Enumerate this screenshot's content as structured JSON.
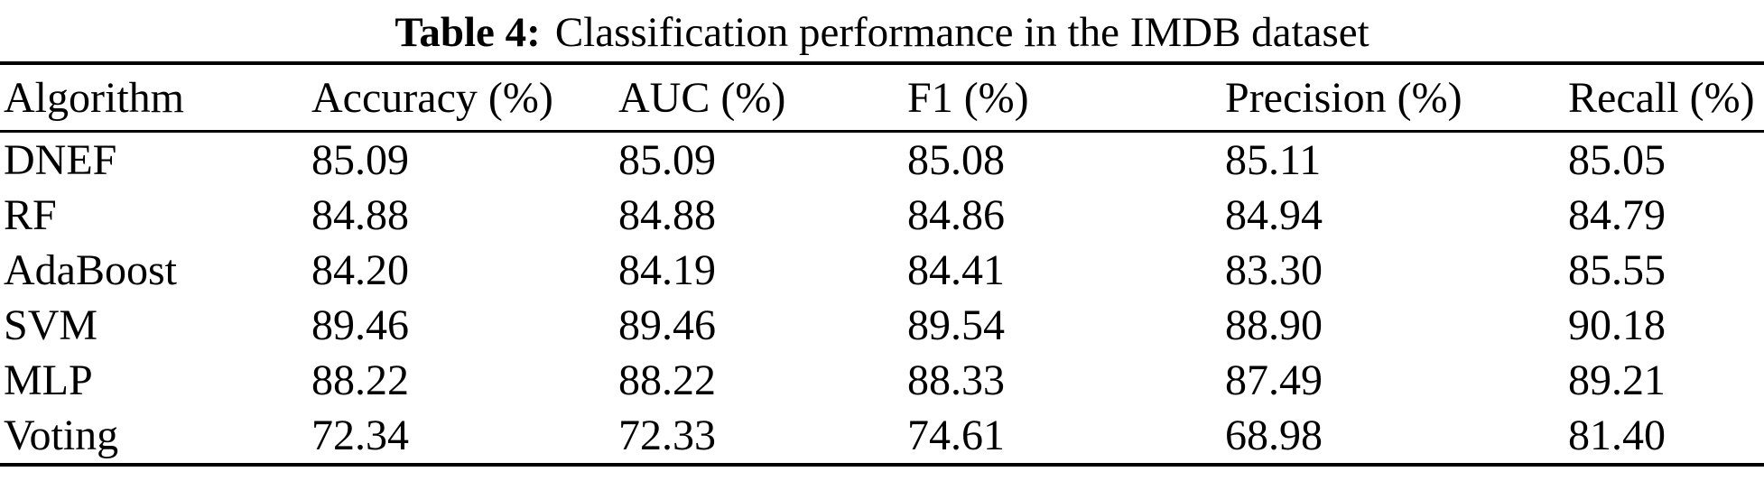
{
  "caption": {
    "label": "Table 4:",
    "text": "Classification performance in the IMDB dataset"
  },
  "table": {
    "headers": [
      "Algorithm",
      "Accuracy (%)",
      "AUC (%)",
      "F1 (%)",
      "Precision (%)",
      "Recall (%)"
    ],
    "rows": [
      [
        "DNEF",
        "85.09",
        "85.09",
        "85.08",
        "85.11",
        "85.05"
      ],
      [
        "RF",
        "84.88",
        "84.88",
        "84.86",
        "84.94",
        "84.79"
      ],
      [
        "AdaBoost",
        "84.20",
        "84.19",
        "84.41",
        "83.30",
        "85.55"
      ],
      [
        "SVM",
        "89.46",
        "89.46",
        "89.54",
        "88.90",
        "90.18"
      ],
      [
        "MLP",
        "88.22",
        "88.22",
        "88.33",
        "87.49",
        "89.21"
      ],
      [
        "Voting",
        "72.34",
        "72.33",
        "74.61",
        "68.98",
        "81.40"
      ]
    ]
  }
}
